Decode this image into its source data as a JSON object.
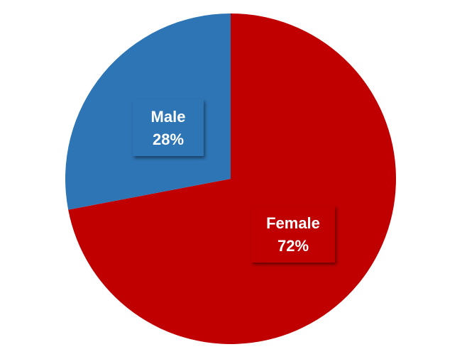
{
  "chart_data": {
    "type": "pie",
    "categories": [
      "Female",
      "Male"
    ],
    "values": [
      72,
      28
    ],
    "labels": [
      "72%",
      "28%"
    ],
    "colors": [
      "#C00000",
      "#2E75B6"
    ],
    "start_angle_deg": 0,
    "direction": "clockwise",
    "title": "",
    "legend": "none"
  }
}
